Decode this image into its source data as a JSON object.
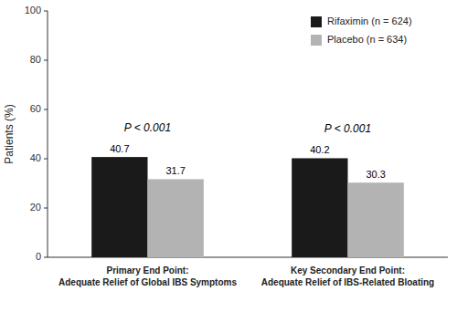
{
  "chart_data": {
    "type": "bar",
    "y_label": "Patients (%)",
    "categories": [
      "Primary End Point:\nAdequate Relief of Global IBS Symptoms",
      "Key Secondary End Point:\nAdequate Relief of IBS-Related Bloating"
    ],
    "series": [
      {
        "name": "Rifaximin (n = 624)",
        "color": "#1a1a1a",
        "values": [
          40.7,
          40.2
        ]
      },
      {
        "name": "Placebo (n = 634)",
        "color": "#b3b3b3",
        "values": [
          31.7,
          30.3
        ]
      }
    ],
    "annotations": [
      "P < 0.001",
      "P < 0.001"
    ],
    "ylim": [
      0,
      100
    ],
    "yticks": [
      0,
      20,
      40,
      60,
      80,
      100
    ],
    "data_labels": true,
    "grid": false,
    "legend": "upper right"
  }
}
